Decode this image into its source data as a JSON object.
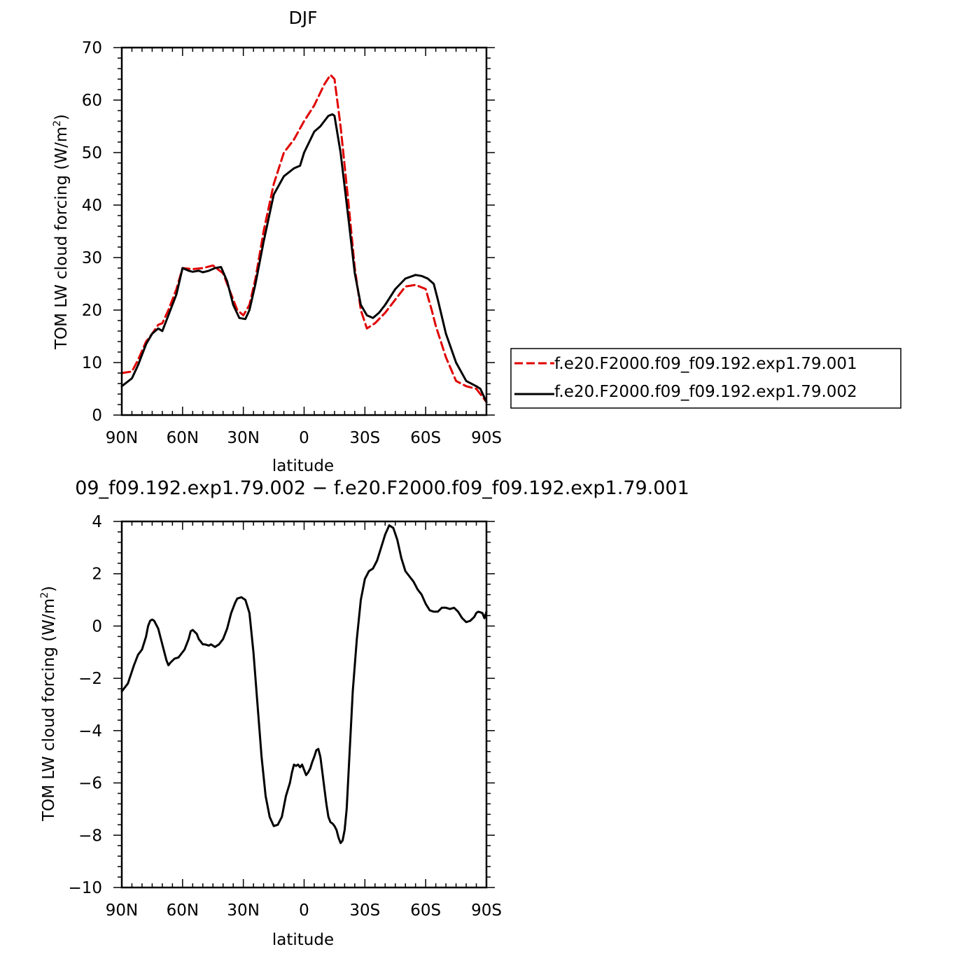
{
  "chart_data": [
    {
      "type": "line",
      "title": "DJF",
      "xlabel": "latitude",
      "ylabel": "TOM LW cloud forcing (W/m²)",
      "ylabel_main": "TOM LW cloud forcing (W/m",
      "ylabel_sup": "2",
      "ylabel_end": ")",
      "xlim": [
        -90,
        90
      ],
      "ylim": [
        0,
        70
      ],
      "xticks": [
        -90,
        -60,
        -30,
        0,
        30,
        60,
        90
      ],
      "xtick_labels": [
        "90N",
        "60N",
        "30N",
        "0",
        "30S",
        "60S",
        "90S"
      ],
      "yticks": [
        0,
        10,
        20,
        30,
        40,
        50,
        60,
        70
      ],
      "ytick_labels": [
        "0",
        "10",
        "20",
        "30",
        "40",
        "50",
        "60",
        "70"
      ],
      "grid": false,
      "legend_position": "right",
      "series": [
        {
          "name": "f.e20.F2000.f09_f09.192.exp1.79.001",
          "color": "#e00000",
          "dash": "dashed",
          "x": [
            -90,
            -85,
            -82,
            -78,
            -75,
            -72,
            -70,
            -67,
            -63,
            -60,
            -55,
            -50,
            -45,
            -40,
            -37,
            -33,
            -30,
            -27,
            -24,
            -20,
            -15,
            -10,
            -5,
            0,
            5,
            10,
            13,
            15,
            18,
            22,
            25,
            28,
            31,
            35,
            40,
            45,
            50,
            55,
            60,
            63,
            65,
            70,
            75,
            80,
            85,
            90
          ],
          "y": [
            8,
            8.3,
            10.5,
            14,
            15.5,
            17.2,
            17.5,
            20,
            24,
            28,
            27.8,
            28,
            28.5,
            27,
            24,
            20,
            19,
            21,
            26,
            35,
            44,
            50,
            52.5,
            56,
            59,
            63,
            64.8,
            64,
            55,
            40,
            28,
            20,
            16.5,
            17.5,
            19.5,
            22,
            24.5,
            24.8,
            24,
            20,
            17,
            11,
            6.5,
            5.5,
            5,
            2.5
          ]
        },
        {
          "name": "f.e20.F2000.f09_f09.192.exp1.79.002",
          "color": "#000000",
          "dash": "solid",
          "x": [
            -90,
            -85,
            -82,
            -78,
            -75,
            -72,
            -70,
            -67,
            -63,
            -60,
            -57,
            -55,
            -52,
            -50,
            -47,
            -44,
            -41,
            -38,
            -35,
            -32,
            -29,
            -27,
            -24,
            -20,
            -15,
            -10,
            -5,
            -2,
            0,
            5,
            8,
            10,
            12,
            14,
            15,
            18,
            22,
            25,
            28,
            31,
            34,
            37,
            40,
            45,
            50,
            55,
            58,
            61,
            64,
            66,
            70,
            75,
            80,
            85,
            87,
            90
          ],
          "y": [
            5.5,
            7,
            9.5,
            13.5,
            15.5,
            16.5,
            16,
            19,
            23,
            28,
            27.5,
            27.3,
            27.5,
            27.2,
            27.5,
            28,
            28.2,
            25.5,
            21,
            18.5,
            18.3,
            20,
            25,
            33,
            42,
            45.5,
            47,
            47.5,
            50,
            54,
            55,
            56,
            57,
            57.3,
            57,
            50,
            37,
            27,
            21,
            19,
            18.5,
            19.5,
            21,
            24,
            26,
            26.7,
            26.5,
            26,
            25,
            22,
            15.5,
            10,
            6.5,
            5.5,
            5,
            2.5
          ]
        }
      ]
    },
    {
      "type": "line",
      "title": "09_f09.192.exp1.79.002 − f.e20.F2000.f09_f09.192.exp1.79.001",
      "xlabel": "latitude",
      "ylabel": "TOM LW cloud forcing (W/m²)",
      "ylabel_main": "TOM LW cloud forcing (W/m",
      "ylabel_sup": "2",
      "ylabel_end": ")",
      "xlim": [
        -90,
        90
      ],
      "ylim": [
        -10,
        4
      ],
      "xticks": [
        -90,
        -60,
        -30,
        0,
        30,
        60,
        90
      ],
      "xtick_labels": [
        "90N",
        "60N",
        "30N",
        "0",
        "30S",
        "60S",
        "90S"
      ],
      "yticks": [
        -10,
        -8,
        -6,
        -4,
        -2,
        0,
        2,
        4
      ],
      "ytick_labels": [
        "−10",
        "−8",
        "−6",
        "−4",
        "−2",
        "0",
        "2",
        "4"
      ],
      "grid": false,
      "series": [
        {
          "color": "#000000",
          "dash": "solid",
          "x": [
            -90,
            -87,
            -84,
            -82,
            -80,
            -78,
            -77,
            -76,
            -75,
            -74,
            -72,
            -70,
            -68,
            -67,
            -66,
            -64,
            -62,
            -61,
            -59,
            -57,
            -56,
            -55,
            -53,
            -52,
            -50,
            -49,
            -47,
            -46,
            -44,
            -42,
            -40,
            -38,
            -36,
            -34,
            -33,
            -31,
            -29,
            -27,
            -25,
            -23,
            -21,
            -19,
            -17,
            -15,
            -13,
            -11,
            -9,
            -7,
            -6,
            -5,
            -4,
            -3,
            -2,
            -1,
            0,
            1,
            2,
            3,
            4,
            5,
            6,
            7,
            8,
            9,
            10,
            11,
            12,
            13,
            14,
            15,
            16,
            17,
            18,
            19,
            20,
            21,
            22,
            23,
            24,
            26,
            28,
            30,
            32,
            34,
            36,
            38,
            40,
            42,
            44,
            46,
            48,
            50,
            52,
            54,
            56,
            58,
            60,
            62,
            64,
            66,
            68,
            70,
            72,
            74,
            76,
            78,
            80,
            82,
            84,
            85,
            86,
            88,
            89,
            90
          ],
          "y": [
            -2.5,
            -2.2,
            -1.5,
            -1.1,
            -0.9,
            -0.4,
            0,
            0.2,
            0.25,
            0.2,
            -0.1,
            -0.7,
            -1.3,
            -1.5,
            -1.4,
            -1.25,
            -1.2,
            -1.1,
            -0.9,
            -0.5,
            -0.2,
            -0.15,
            -0.3,
            -0.5,
            -0.7,
            -0.7,
            -0.75,
            -0.7,
            -0.8,
            -0.7,
            -0.5,
            -0.1,
            0.5,
            0.9,
            1.05,
            1.1,
            1.0,
            0.5,
            -1.0,
            -3.0,
            -5.0,
            -6.5,
            -7.3,
            -7.65,
            -7.6,
            -7.3,
            -6.5,
            -6.0,
            -5.6,
            -5.3,
            -5.35,
            -5.3,
            -5.4,
            -5.3,
            -5.5,
            -5.7,
            -5.6,
            -5.45,
            -5.2,
            -5.0,
            -4.75,
            -4.7,
            -5.0,
            -5.6,
            -6.2,
            -6.8,
            -7.3,
            -7.5,
            -7.55,
            -7.65,
            -7.8,
            -8.1,
            -8.3,
            -8.2,
            -7.8,
            -7.0,
            -5.5,
            -4.0,
            -2.5,
            -0.5,
            1.0,
            1.8,
            2.1,
            2.2,
            2.5,
            3.0,
            3.5,
            3.85,
            3.75,
            3.3,
            2.6,
            2.1,
            1.9,
            1.7,
            1.4,
            1.2,
            0.85,
            0.6,
            0.55,
            0.55,
            0.7,
            0.7,
            0.65,
            0.7,
            0.55,
            0.3,
            0.15,
            0.2,
            0.35,
            0.5,
            0.55,
            0.5,
            0.3,
            0.55
          ]
        }
      ]
    }
  ]
}
